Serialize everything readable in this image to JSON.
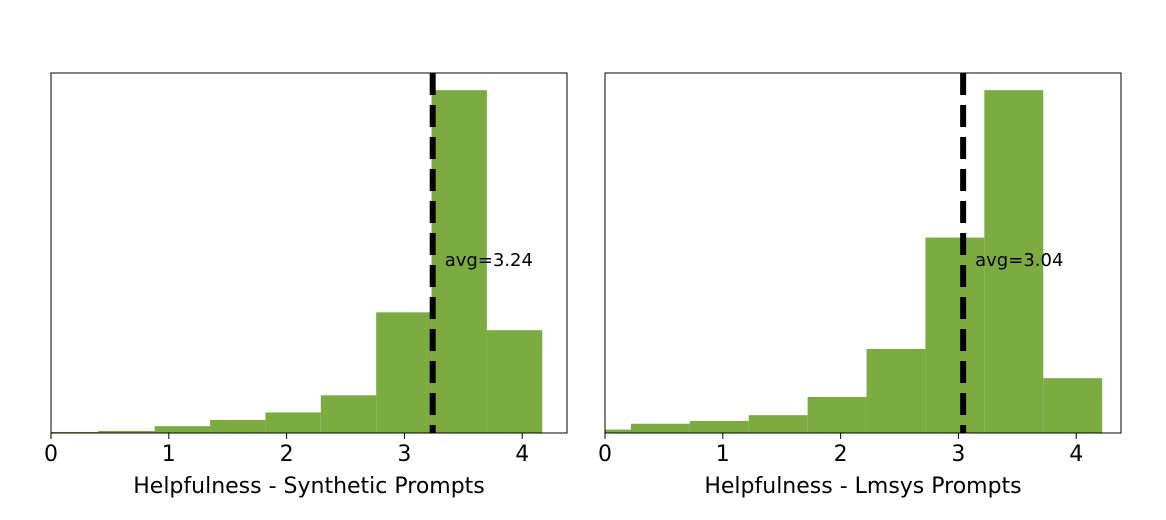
{
  "chart_data": [
    {
      "type": "bar",
      "subtype": "histogram",
      "xlabel": "Helpfulness - Synthetic Prompts",
      "ylabel": "",
      "xlim": [
        0,
        4.38
      ],
      "ylim": [
        0,
        1.05
      ],
      "y_ticks_shown": false,
      "grid": false,
      "bar_color": "#7cac40",
      "xticks": [
        "0",
        "1",
        "2",
        "3",
        "4"
      ],
      "bins": [
        {
          "x0": 0.0,
          "x1": 0.4,
          "value": 0.003
        },
        {
          "x0": 0.4,
          "x1": 0.88,
          "value": 0.006
        },
        {
          "x0": 0.88,
          "x1": 1.35,
          "value": 0.02
        },
        {
          "x0": 1.35,
          "x1": 1.82,
          "value": 0.038
        },
        {
          "x0": 1.82,
          "x1": 2.29,
          "value": 0.06
        },
        {
          "x0": 2.29,
          "x1": 2.76,
          "value": 0.11
        },
        {
          "x0": 2.76,
          "x1": 3.23,
          "value": 0.352
        },
        {
          "x0": 3.23,
          "x1": 3.7,
          "value": 1.0
        },
        {
          "x0": 3.7,
          "x1": 4.17,
          "value": 0.3
        }
      ],
      "mean_line": {
        "x": 3.24,
        "label": "avg=3.24",
        "style": "dashed",
        "color": "#000000"
      }
    },
    {
      "type": "bar",
      "subtype": "histogram",
      "xlabel": "Helpfulness - Lmsys Prompts",
      "ylabel": "",
      "xlim": [
        0,
        4.38
      ],
      "ylim": [
        0,
        1.05
      ],
      "y_ticks_shown": false,
      "grid": false,
      "bar_color": "#7cac40",
      "xticks": [
        "0",
        "1",
        "2",
        "3",
        "4"
      ],
      "bins": [
        {
          "x0": 0.0,
          "x1": 0.22,
          "value": 0.01
        },
        {
          "x0": 0.22,
          "x1": 0.72,
          "value": 0.027
        },
        {
          "x0": 0.72,
          "x1": 1.22,
          "value": 0.035
        },
        {
          "x0": 1.22,
          "x1": 1.72,
          "value": 0.052
        },
        {
          "x0": 1.72,
          "x1": 2.22,
          "value": 0.105
        },
        {
          "x0": 2.22,
          "x1": 2.72,
          "value": 0.245
        },
        {
          "x0": 2.72,
          "x1": 3.22,
          "value": 0.57
        },
        {
          "x0": 3.22,
          "x1": 3.72,
          "value": 1.0
        },
        {
          "x0": 3.72,
          "x1": 4.22,
          "value": 0.16
        }
      ],
      "mean_line": {
        "x": 3.04,
        "label": "avg=3.04",
        "style": "dashed",
        "color": "#000000"
      }
    }
  ]
}
